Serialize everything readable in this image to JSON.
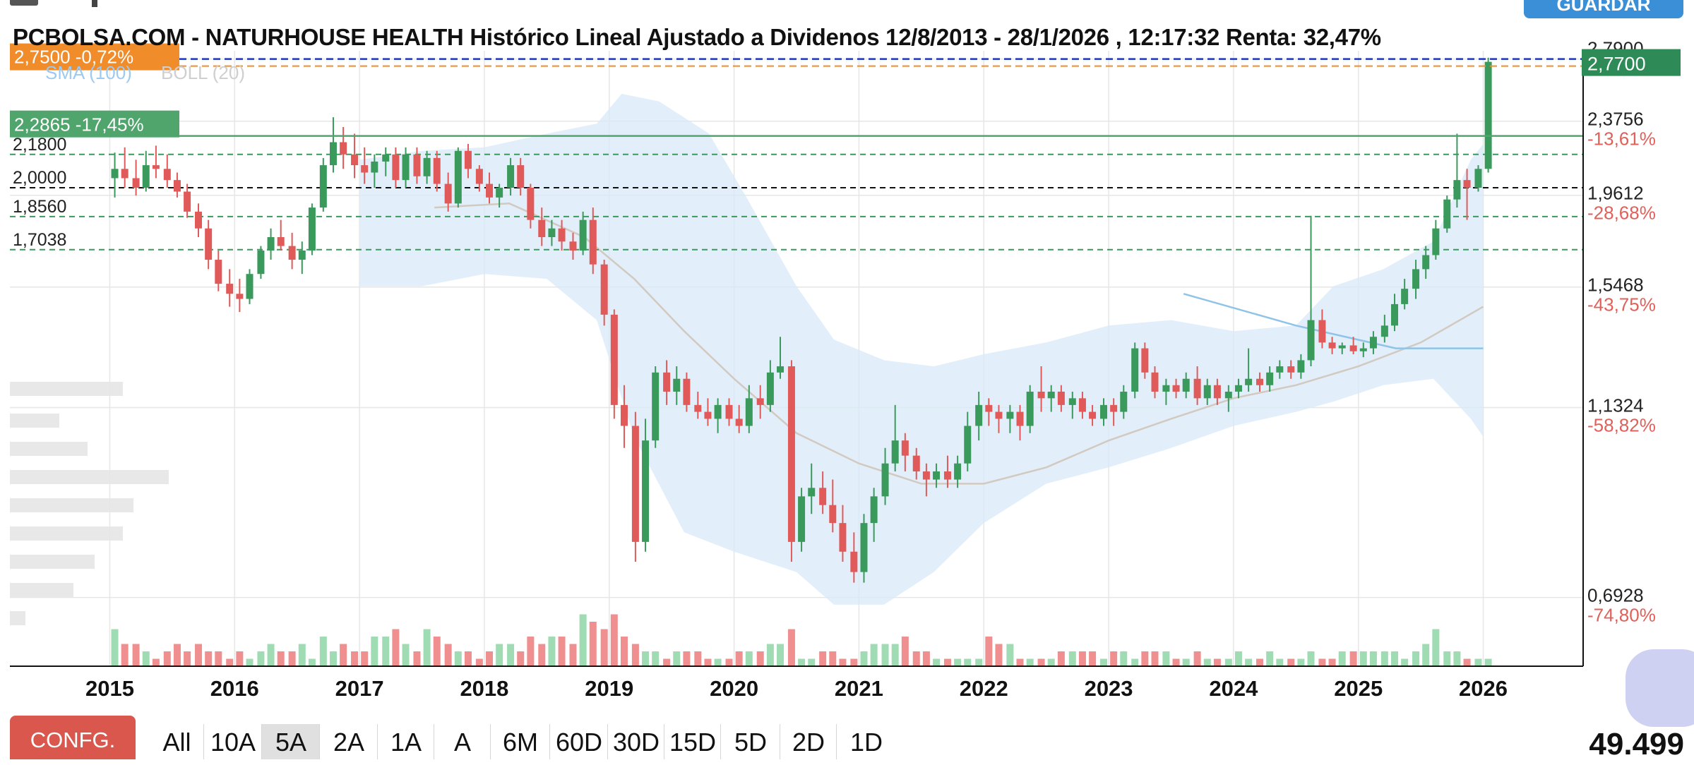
{
  "toolbar_top": {
    "save_label": "GUARDAR"
  },
  "chart_data": {
    "type": "candlestick",
    "title": "PCBOLSA.COM - NATURHOUSE HEALTH Histórico Lineal Ajustado a Dividenos 12/8/2013 - 28/1/2026 , 12:17:32 Renta: 32,47%",
    "indicators": [
      "SMA (100)",
      "BOLL (20)"
    ],
    "x_ticks": [
      "2015",
      "2016",
      "2017",
      "2018",
      "2019",
      "2020",
      "2021",
      "2022",
      "2023",
      "2024",
      "2025",
      "2026"
    ],
    "x_range": [
      2014.2,
      2026.8
    ],
    "y_range": [
      0.58,
      2.85
    ],
    "y_scale": "log",
    "y_ticks_right": [
      {
        "value": 2.79,
        "label": "2,7900",
        "pct": ""
      },
      {
        "value": 2.3756,
        "label": "2,3756",
        "pct": "-13,61%"
      },
      {
        "value": 1.9612,
        "label": "1,9612",
        "pct": "-28,68%"
      },
      {
        "value": 1.5468,
        "label": "1,5468",
        "pct": "-43,75%"
      },
      {
        "value": 1.1324,
        "label": "1,1324",
        "pct": "-58,82%"
      },
      {
        "value": 0.6928,
        "label": "0,6928",
        "pct": "-74,80%"
      }
    ],
    "levels_left": [
      {
        "value": 2.18,
        "label": "2,1800"
      },
      {
        "value": 2.0,
        "label": "2,0000"
      },
      {
        "value": 1.856,
        "label": "1,8560"
      },
      {
        "value": 1.7038,
        "label": "1,7038"
      }
    ],
    "reference_lines": [
      {
        "value": 2.77,
        "label": "2,7700",
        "color": "#2e8b57"
      },
      {
        "value": 2.75,
        "label": "2,7500  -0,72%",
        "color": "#f08c2a"
      },
      {
        "value": 2.2865,
        "label": "2,2865  -17,45%",
        "color": "#4fa56c"
      }
    ],
    "current_price": 2.77,
    "colors": {
      "up": "#3a9a5c",
      "down": "#e05a5a",
      "band": "#d8e9f8",
      "sma": "#d2c9c0",
      "trend": "#8fc3e8",
      "vol_up": "#9fdcb4",
      "vol_down": "#ef8f8f"
    },
    "monthly": [
      [
        2015.04,
        2.05,
        2.19,
        1.95,
        2.1
      ],
      [
        2015.12,
        2.1,
        2.22,
        2.0,
        2.05
      ],
      [
        2015.21,
        2.05,
        2.15,
        1.96,
        2.0
      ],
      [
        2015.29,
        2.0,
        2.2,
        1.98,
        2.12
      ],
      [
        2015.37,
        2.12,
        2.23,
        2.05,
        2.1
      ],
      [
        2015.46,
        2.1,
        2.18,
        2.0,
        2.04
      ],
      [
        2015.54,
        2.04,
        2.08,
        1.95,
        1.98
      ],
      [
        2015.62,
        1.98,
        2.02,
        1.85,
        1.88
      ],
      [
        2015.71,
        1.88,
        1.92,
        1.76,
        1.8
      ],
      [
        2015.79,
        1.8,
        1.84,
        1.62,
        1.66
      ],
      [
        2015.87,
        1.66,
        1.7,
        1.53,
        1.56
      ],
      [
        2015.96,
        1.56,
        1.62,
        1.47,
        1.52
      ],
      [
        2016.04,
        1.52,
        1.58,
        1.45,
        1.5
      ],
      [
        2016.12,
        1.5,
        1.62,
        1.48,
        1.6
      ],
      [
        2016.21,
        1.6,
        1.72,
        1.58,
        1.7
      ],
      [
        2016.29,
        1.7,
        1.8,
        1.66,
        1.76
      ],
      [
        2016.37,
        1.76,
        1.84,
        1.7,
        1.72
      ],
      [
        2016.46,
        1.72,
        1.78,
        1.62,
        1.66
      ],
      [
        2016.54,
        1.66,
        1.74,
        1.6,
        1.7
      ],
      [
        2016.62,
        1.7,
        1.92,
        1.68,
        1.9
      ],
      [
        2016.71,
        1.9,
        2.16,
        1.88,
        2.12
      ],
      [
        2016.79,
        2.12,
        2.4,
        2.08,
        2.25
      ],
      [
        2016.87,
        2.25,
        2.34,
        2.1,
        2.18
      ],
      [
        2016.96,
        2.18,
        2.3,
        2.05,
        2.12
      ],
      [
        2017.04,
        2.12,
        2.22,
        2.02,
        2.08
      ],
      [
        2017.12,
        2.08,
        2.18,
        2.0,
        2.14
      ],
      [
        2017.21,
        2.14,
        2.22,
        2.06,
        2.18
      ],
      [
        2017.29,
        2.18,
        2.22,
        2.0,
        2.04
      ],
      [
        2017.37,
        2.04,
        2.22,
        2.0,
        2.18
      ],
      [
        2017.46,
        2.18,
        2.22,
        2.02,
        2.06
      ],
      [
        2017.54,
        2.06,
        2.2,
        2.02,
        2.16
      ],
      [
        2017.62,
        2.16,
        2.2,
        1.98,
        2.02
      ],
      [
        2017.71,
        2.02,
        2.08,
        1.88,
        1.92
      ],
      [
        2017.79,
        1.92,
        2.22,
        1.9,
        2.2
      ],
      [
        2017.87,
        2.2,
        2.24,
        2.05,
        2.1
      ],
      [
        2017.96,
        2.1,
        2.12,
        1.98,
        2.02
      ],
      [
        2018.04,
        2.02,
        2.08,
        1.92,
        1.95
      ],
      [
        2018.12,
        1.95,
        2.02,
        1.9,
        2.0
      ],
      [
        2018.21,
        2.0,
        2.16,
        1.96,
        2.12
      ],
      [
        2018.29,
        2.12,
        2.16,
        1.96,
        2.0
      ],
      [
        2018.37,
        2.0,
        2.02,
        1.8,
        1.84
      ],
      [
        2018.46,
        1.84,
        1.9,
        1.72,
        1.76
      ],
      [
        2018.54,
        1.76,
        1.84,
        1.72,
        1.8
      ],
      [
        2018.62,
        1.8,
        1.84,
        1.7,
        1.74
      ],
      [
        2018.71,
        1.74,
        1.78,
        1.66,
        1.7
      ],
      [
        2018.79,
        1.7,
        1.88,
        1.68,
        1.84
      ],
      [
        2018.87,
        1.84,
        1.9,
        1.6,
        1.64
      ],
      [
        2018.96,
        1.64,
        1.66,
        1.4,
        1.44
      ],
      [
        2019.04,
        1.44,
        1.46,
        1.1,
        1.14
      ],
      [
        2019.12,
        1.14,
        1.2,
        1.02,
        1.08
      ],
      [
        2019.21,
        1.08,
        1.12,
        0.76,
        0.8
      ],
      [
        2019.29,
        0.8,
        1.1,
        0.78,
        1.04
      ],
      [
        2019.37,
        1.04,
        1.26,
        1.02,
        1.24
      ],
      [
        2019.46,
        1.24,
        1.28,
        1.14,
        1.18
      ],
      [
        2019.54,
        1.18,
        1.26,
        1.14,
        1.22
      ],
      [
        2019.62,
        1.22,
        1.24,
        1.12,
        1.14
      ],
      [
        2019.71,
        1.14,
        1.18,
        1.1,
        1.12
      ],
      [
        2019.79,
        1.12,
        1.16,
        1.08,
        1.1
      ],
      [
        2019.87,
        1.1,
        1.16,
        1.06,
        1.14
      ],
      [
        2019.96,
        1.14,
        1.16,
        1.08,
        1.1
      ],
      [
        2020.04,
        1.1,
        1.14,
        1.06,
        1.08
      ],
      [
        2020.12,
        1.08,
        1.2,
        1.06,
        1.16
      ],
      [
        2020.21,
        1.16,
        1.2,
        1.1,
        1.14
      ],
      [
        2020.29,
        1.14,
        1.28,
        1.12,
        1.24
      ],
      [
        2020.37,
        1.24,
        1.36,
        1.22,
        1.26
      ],
      [
        2020.46,
        1.26,
        1.28,
        0.76,
        0.8
      ],
      [
        2020.54,
        0.8,
        0.92,
        0.78,
        0.9
      ],
      [
        2020.62,
        0.9,
        0.98,
        0.86,
        0.92
      ],
      [
        2020.71,
        0.92,
        0.96,
        0.86,
        0.88
      ],
      [
        2020.79,
        0.88,
        0.94,
        0.82,
        0.84
      ],
      [
        2020.87,
        0.84,
        0.88,
        0.76,
        0.78
      ],
      [
        2020.96,
        0.78,
        0.82,
        0.72,
        0.74
      ],
      [
        2021.04,
        0.74,
        0.86,
        0.72,
        0.84
      ],
      [
        2021.12,
        0.84,
        0.92,
        0.8,
        0.9
      ],
      [
        2021.21,
        0.9,
        1.02,
        0.88,
        0.98
      ],
      [
        2021.29,
        0.98,
        1.14,
        0.96,
        1.04
      ],
      [
        2021.37,
        1.04,
        1.06,
        0.96,
        1.0
      ],
      [
        2021.46,
        1.0,
        1.02,
        0.94,
        0.96
      ],
      [
        2021.54,
        0.96,
        0.98,
        0.9,
        0.94
      ],
      [
        2021.62,
        0.94,
        0.98,
        0.92,
        0.96
      ],
      [
        2021.71,
        0.96,
        1.0,
        0.92,
        0.94
      ],
      [
        2021.79,
        0.94,
        1.0,
        0.92,
        0.98
      ],
      [
        2021.87,
        0.98,
        1.12,
        0.96,
        1.08
      ],
      [
        2021.96,
        1.08,
        1.18,
        1.04,
        1.14
      ],
      [
        2022.04,
        1.14,
        1.16,
        1.08,
        1.12
      ],
      [
        2022.12,
        1.12,
        1.14,
        1.06,
        1.1
      ],
      [
        2022.21,
        1.1,
        1.14,
        1.06,
        1.12
      ],
      [
        2022.29,
        1.12,
        1.14,
        1.04,
        1.08
      ],
      [
        2022.37,
        1.08,
        1.2,
        1.06,
        1.18
      ],
      [
        2022.46,
        1.18,
        1.26,
        1.12,
        1.16
      ],
      [
        2022.54,
        1.16,
        1.2,
        1.12,
        1.18
      ],
      [
        2022.62,
        1.18,
        1.2,
        1.12,
        1.14
      ],
      [
        2022.71,
        1.14,
        1.18,
        1.1,
        1.16
      ],
      [
        2022.79,
        1.16,
        1.18,
        1.1,
        1.12
      ],
      [
        2022.87,
        1.12,
        1.14,
        1.08,
        1.1
      ],
      [
        2022.96,
        1.1,
        1.16,
        1.08,
        1.14
      ],
      [
        2023.04,
        1.14,
        1.16,
        1.08,
        1.12
      ],
      [
        2023.12,
        1.12,
        1.2,
        1.1,
        1.18
      ],
      [
        2023.21,
        1.18,
        1.34,
        1.16,
        1.32
      ],
      [
        2023.29,
        1.32,
        1.34,
        1.22,
        1.24
      ],
      [
        2023.37,
        1.24,
        1.26,
        1.16,
        1.18
      ],
      [
        2023.46,
        1.18,
        1.22,
        1.14,
        1.2
      ],
      [
        2023.54,
        1.2,
        1.22,
        1.16,
        1.18
      ],
      [
        2023.62,
        1.18,
        1.24,
        1.16,
        1.22
      ],
      [
        2023.71,
        1.22,
        1.26,
        1.14,
        1.16
      ],
      [
        2023.79,
        1.16,
        1.22,
        1.14,
        1.2
      ],
      [
        2023.87,
        1.2,
        1.22,
        1.14,
        1.16
      ],
      [
        2023.96,
        1.16,
        1.2,
        1.12,
        1.18
      ],
      [
        2024.04,
        1.18,
        1.22,
        1.16,
        1.2
      ],
      [
        2024.12,
        1.2,
        1.32,
        1.18,
        1.22
      ],
      [
        2024.21,
        1.22,
        1.24,
        1.18,
        1.2
      ],
      [
        2024.29,
        1.2,
        1.26,
        1.18,
        1.24
      ],
      [
        2024.37,
        1.24,
        1.28,
        1.22,
        1.26
      ],
      [
        2024.46,
        1.26,
        1.28,
        1.22,
        1.24
      ],
      [
        2024.54,
        1.24,
        1.3,
        1.22,
        1.28
      ],
      [
        2024.62,
        1.28,
        1.86,
        1.26,
        1.42
      ],
      [
        2024.71,
        1.42,
        1.46,
        1.32,
        1.34
      ],
      [
        2024.79,
        1.34,
        1.36,
        1.3,
        1.32
      ],
      [
        2024.87,
        1.32,
        1.34,
        1.3,
        1.33
      ],
      [
        2024.96,
        1.33,
        1.36,
        1.3,
        1.31
      ],
      [
        2025.04,
        1.31,
        1.34,
        1.29,
        1.32
      ],
      [
        2025.12,
        1.32,
        1.38,
        1.3,
        1.36
      ],
      [
        2025.21,
        1.36,
        1.44,
        1.34,
        1.4
      ],
      [
        2025.29,
        1.4,
        1.52,
        1.38,
        1.48
      ],
      [
        2025.37,
        1.48,
        1.58,
        1.46,
        1.54
      ],
      [
        2025.46,
        1.54,
        1.66,
        1.5,
        1.62
      ],
      [
        2025.54,
        1.62,
        1.72,
        1.58,
        1.68
      ],
      [
        2025.62,
        1.68,
        1.84,
        1.66,
        1.8
      ],
      [
        2025.71,
        1.8,
        1.96,
        1.78,
        1.94
      ],
      [
        2025.79,
        1.94,
        2.3,
        1.9,
        2.04
      ],
      [
        2025.87,
        2.04,
        2.1,
        1.84,
        2.0
      ],
      [
        2025.96,
        2.0,
        2.12,
        1.98,
        2.1
      ],
      [
        2026.04,
        2.1,
        2.8,
        2.08,
        2.77
      ]
    ],
    "volume": [
      5,
      3,
      3,
      2,
      1,
      2,
      3,
      2,
      3,
      2,
      2,
      1,
      2,
      1,
      2,
      3,
      2,
      2,
      3,
      1,
      4,
      2,
      3,
      2,
      2,
      4,
      4,
      5,
      3,
      2,
      5,
      4,
      3,
      2,
      2,
      1,
      2,
      3,
      3,
      2,
      4,
      3,
      4,
      4,
      3,
      7,
      6,
      5,
      7,
      4,
      3,
      2,
      2,
      1,
      2,
      2,
      2,
      1,
      1,
      1,
      2,
      2,
      2,
      3,
      3,
      5,
      1,
      1,
      2,
      2,
      1,
      1,
      2,
      3,
      3,
      3,
      4,
      2,
      2,
      1,
      1,
      1,
      1,
      1,
      4,
      3,
      3,
      1,
      1,
      1,
      1,
      2,
      2,
      2,
      2,
      1,
      2,
      2,
      1,
      2,
      2,
      2,
      1,
      1,
      2,
      1,
      1,
      1,
      2,
      1,
      1,
      2,
      1,
      1,
      1,
      2,
      1,
      1,
      2,
      2,
      2,
      2,
      2,
      2,
      1,
      2,
      3,
      5,
      2,
      2,
      1,
      1,
      1,
      1,
      2,
      2,
      3,
      3,
      2,
      2,
      2,
      3,
      3,
      3,
      2,
      3,
      4,
      4,
      3,
      4,
      3,
      2,
      2,
      3,
      6,
      4,
      3,
      2,
      3,
      2,
      4,
      3,
      4,
      2,
      2,
      5,
      8,
      4,
      2,
      2,
      2,
      4,
      2
    ],
    "sma_points": [
      [
        2017.6,
        1.9
      ],
      [
        2018.2,
        1.92
      ],
      [
        2018.8,
        1.76
      ],
      [
        2019.2,
        1.58
      ],
      [
        2019.6,
        1.38
      ],
      [
        2020.0,
        1.22
      ],
      [
        2020.5,
        1.06
      ],
      [
        2021.0,
        0.98
      ],
      [
        2021.5,
        0.93
      ],
      [
        2022.0,
        0.93
      ],
      [
        2022.5,
        0.97
      ],
      [
        2023.0,
        1.04
      ],
      [
        2023.5,
        1.1
      ],
      [
        2024.0,
        1.16
      ],
      [
        2024.5,
        1.2
      ],
      [
        2025.0,
        1.26
      ],
      [
        2025.5,
        1.34
      ],
      [
        2026.0,
        1.47
      ]
    ],
    "band_upper": [
      [
        2017.0,
        2.15
      ],
      [
        2017.5,
        2.2
      ],
      [
        2018.0,
        2.22
      ],
      [
        2018.5,
        2.3
      ],
      [
        2018.9,
        2.36
      ],
      [
        2019.1,
        2.55
      ],
      [
        2019.4,
        2.5
      ],
      [
        2019.8,
        2.3
      ],
      [
        2020.1,
        1.95
      ],
      [
        2020.5,
        1.55
      ],
      [
        2020.8,
        1.35
      ],
      [
        2021.2,
        1.28
      ],
      [
        2021.6,
        1.26
      ],
      [
        2022.0,
        1.3
      ],
      [
        2022.5,
        1.34
      ],
      [
        2023.0,
        1.4
      ],
      [
        2023.5,
        1.42
      ],
      [
        2024.0,
        1.38
      ],
      [
        2024.5,
        1.4
      ],
      [
        2024.8,
        1.55
      ],
      [
        2025.2,
        1.62
      ],
      [
        2025.6,
        1.74
      ],
      [
        2025.9,
        2.15
      ],
      [
        2026.0,
        2.24
      ]
    ],
    "band_lower": [
      [
        2017.0,
        1.55
      ],
      [
        2017.5,
        1.55
      ],
      [
        2018.0,
        1.6
      ],
      [
        2018.5,
        1.58
      ],
      [
        2018.9,
        1.42
      ],
      [
        2019.2,
        1.05
      ],
      [
        2019.6,
        0.82
      ],
      [
        2020.0,
        0.78
      ],
      [
        2020.5,
        0.74
      ],
      [
        2020.8,
        0.68
      ],
      [
        2021.2,
        0.68
      ],
      [
        2021.6,
        0.74
      ],
      [
        2022.0,
        0.84
      ],
      [
        2022.5,
        0.93
      ],
      [
        2023.0,
        0.97
      ],
      [
        2023.5,
        1.02
      ],
      [
        2024.0,
        1.08
      ],
      [
        2024.5,
        1.12
      ],
      [
        2024.8,
        1.15
      ],
      [
        2025.2,
        1.2
      ],
      [
        2025.6,
        1.22
      ],
      [
        2025.9,
        1.1
      ],
      [
        2026.0,
        1.05
      ]
    ],
    "trend_line": [
      [
        2023.6,
        1.52
      ],
      [
        2024.5,
        1.4
      ],
      [
        2025.3,
        1.32
      ],
      [
        2026.0,
        1.32
      ]
    ]
  },
  "timeframes": [
    "All",
    "10A",
    "5A",
    "2A",
    "1A",
    "A",
    "6M",
    "60D",
    "30D",
    "15D",
    "5D",
    "2D",
    "1D"
  ],
  "active_timeframe": "5A",
  "config_label": "CONFG.",
  "volume_total": "49.499"
}
